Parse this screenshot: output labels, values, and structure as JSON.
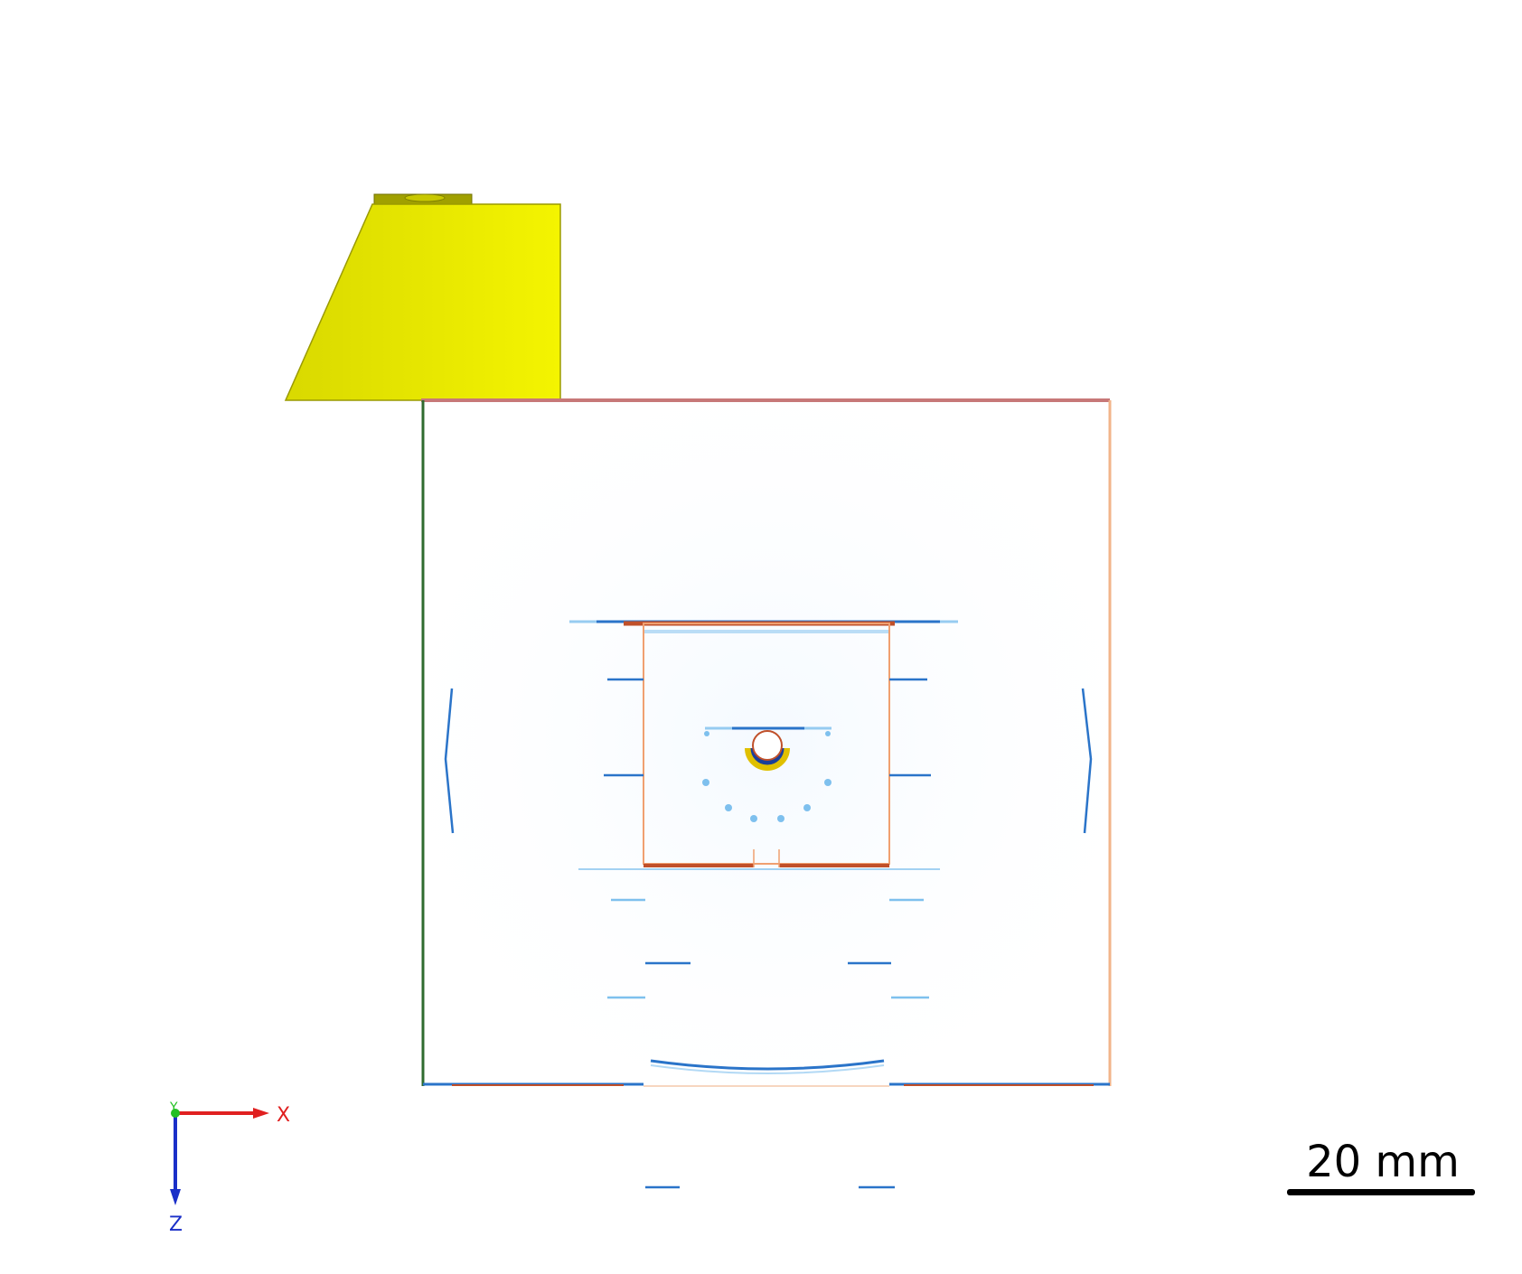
{
  "scene": {
    "background": "#ffffff",
    "colors": {
      "transducer_fill": "#e8e800",
      "transducer_edge": "#9a9a00",
      "transducer_cap": "#a0a000",
      "top_edge": "#c77878",
      "left_edge": "#2f6b2f",
      "right_edge": "#f2b48a",
      "inner_edge": "#f0a070",
      "field_blue": "#2a74c9",
      "field_light_blue": "#7ec0ee",
      "field_red": "#c0502a",
      "field_yellow": "#e0c000"
    }
  },
  "axis_triad": {
    "x_label": "X",
    "z_label": "Z",
    "y_label": "Y",
    "x_color": "#e02020",
    "z_color": "#1a2fc8",
    "y_color": "#22c022"
  },
  "scale_bar": {
    "label": "20 mm",
    "length_mm": 20
  }
}
